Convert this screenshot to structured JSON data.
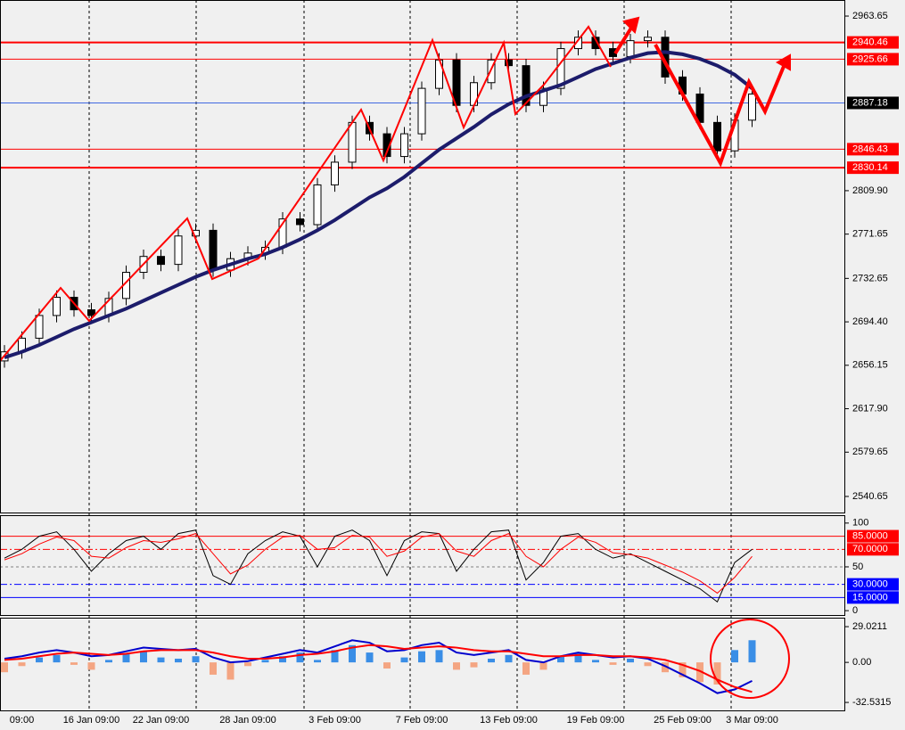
{
  "chart_data": [
    {
      "type": "candlestick",
      "categories": [
        null,
        "09:00",
        null,
        null,
        null,
        "16 Jan 09:00",
        null,
        null,
        null,
        "22 Jan 09:00",
        null,
        null,
        null,
        null,
        "28 Jan 09:00",
        null,
        null,
        null,
        null,
        "3 Feb 09:00",
        null,
        null,
        null,
        null,
        "7 Feb 09:00",
        null,
        null,
        null,
        null,
        "13 Feb 09:00",
        null,
        null,
        null,
        null,
        "19 Feb 09:00",
        null,
        null,
        null,
        null,
        "25 Feb 09:00",
        null,
        null,
        null,
        "3 Mar 09:00"
      ],
      "open": [
        2660,
        2668,
        2680,
        2700,
        2716,
        2705,
        2700,
        2715,
        2738,
        2752,
        2745,
        2770,
        2775,
        2740,
        2750,
        2755,
        2760,
        2785,
        2780,
        2815,
        2835,
        2870,
        2860,
        2840,
        2860,
        2900,
        2925,
        2885,
        2905,
        2925,
        2920,
        2885,
        2900,
        2935,
        2945,
        2935,
        2928,
        2942,
        2945,
        2910,
        2895,
        2870,
        2845,
        2872
      ],
      "high": [
        2674,
        2686,
        2706,
        2722,
        2722,
        2711,
        2721,
        2744,
        2758,
        2758,
        2776,
        2781,
        2781,
        2756,
        2761,
        2766,
        2791,
        2791,
        2821,
        2841,
        2876,
        2876,
        2866,
        2866,
        2906,
        2931,
        2931,
        2911,
        2931,
        2931,
        2926,
        2906,
        2941,
        2951,
        2951,
        2941,
        2948,
        2951,
        2951,
        2916,
        2901,
        2876,
        2878,
        2901
      ],
      "low": [
        2654,
        2662,
        2674,
        2694,
        2699,
        2694,
        2694,
        2709,
        2732,
        2739,
        2739,
        2764,
        2734,
        2734,
        2744,
        2749,
        2754,
        2774,
        2774,
        2809,
        2829,
        2854,
        2834,
        2834,
        2854,
        2894,
        2879,
        2879,
        2899,
        2914,
        2879,
        2879,
        2894,
        2929,
        2929,
        2922,
        2922,
        2936,
        2904,
        2889,
        2864,
        2839,
        2839,
        2866
      ],
      "close": [
        2668,
        2680,
        2700,
        2716,
        2705,
        2700,
        2715,
        2738,
        2752,
        2745,
        2770,
        2775,
        2740,
        2750,
        2755,
        2760,
        2785,
        2780,
        2815,
        2835,
        2870,
        2860,
        2840,
        2860,
        2900,
        2925,
        2885,
        2905,
        2925,
        2920,
        2885,
        2900,
        2935,
        2945,
        2935,
        2928,
        2942,
        2945,
        2910,
        2895,
        2870,
        2845,
        2872,
        2895
      ],
      "up_color": "#ffffff",
      "down_color": "#000000",
      "lines": [
        {
          "color": "#1c1c6b",
          "values": [
            2663,
            2668,
            2674,
            2681,
            2688,
            2694,
            2700,
            2706,
            2713,
            2720,
            2727,
            2734,
            2740,
            2745,
            2750,
            2754,
            2760,
            2767,
            2775,
            2784,
            2794,
            2804,
            2812,
            2822,
            2834,
            2846,
            2856,
            2866,
            2877,
            2886,
            2893,
            2898,
            2903,
            2910,
            2917,
            2922,
            2927,
            2931,
            2932,
            2930,
            2926,
            2920,
            2912,
            2900
          ]
        }
      ],
      "hlines": [
        {
          "value": 2940.46,
          "color": "#ff0000"
        },
        {
          "value": 2925.66,
          "color": "#ff0000"
        },
        {
          "value": 2887.18,
          "color": "#4169e1",
          "label_bg": "#000000"
        },
        {
          "value": 2846.43,
          "color": "#ff0000"
        },
        {
          "value": 2830.14,
          "color": "#ff0000"
        }
      ],
      "ylim": [
        2526.5,
        2977.8
      ],
      "yticks": [
        2963.65,
        {
          "value": 2809.9,
          "label": "2809.90"
        },
        2771.65,
        2732.65,
        {
          "value": 2694.4,
          "label": "2694.40"
        },
        2656.15,
        {
          "value": 2617.9,
          "label": "2617.90"
        },
        2579.65,
        2540.65
      ]
    },
    {
      "type": "line",
      "series": [
        {
          "color": "#000000",
          "values": [
            60,
            70,
            85,
            90,
            70,
            45,
            65,
            80,
            85,
            70,
            88,
            92,
            40,
            30,
            65,
            80,
            90,
            85,
            50,
            85,
            92,
            80,
            40,
            80,
            90,
            88,
            45,
            70,
            90,
            92,
            35,
            55,
            85,
            88,
            70,
            60,
            65,
            55,
            45,
            35,
            25,
            10,
            55,
            70
          ]
        },
        {
          "color": "#ff0000",
          "values": [
            58,
            65,
            76,
            84,
            80,
            62,
            60,
            72,
            80,
            78,
            82,
            88,
            65,
            42,
            52,
            70,
            84,
            86,
            70,
            72,
            86,
            84,
            62,
            68,
            84,
            88,
            68,
            62,
            80,
            88,
            62,
            50,
            70,
            84,
            78,
            66,
            64,
            60,
            52,
            44,
            34,
            20,
            38,
            62
          ]
        }
      ],
      "levels": [
        {
          "value": 85,
          "label": "85.0000",
          "color": "#ff0000"
        },
        {
          "value": 70,
          "label": "70.0000",
          "color": "#ff0000"
        },
        {
          "value": 50,
          "color": "#808080"
        },
        {
          "value": 30,
          "label": "30.0000",
          "color": "#0000ff"
        },
        {
          "value": 15,
          "label": "15.0000",
          "color": "#0000ff"
        }
      ],
      "ylim": [
        -5,
        109
      ],
      "yticks": [
        100,
        50,
        0
      ]
    },
    {
      "type": "bar",
      "values": [
        -8,
        -3,
        4,
        6,
        -2,
        -6,
        2,
        7,
        9,
        4,
        3,
        5,
        -10,
        -14,
        -3,
        2,
        5,
        8,
        2,
        10,
        14,
        8,
        -5,
        4,
        9,
        10,
        -6,
        -4,
        3,
        6,
        -10,
        -6,
        5,
        8,
        2,
        -2,
        3,
        -3,
        -8,
        -12,
        -16,
        -18,
        10,
        18
      ],
      "up_color": "#3a8ee6",
      "down_color": "#f4a582",
      "series": [
        {
          "color": "#0000cd",
          "values": [
            3,
            5,
            8,
            10,
            8,
            5,
            6,
            9,
            12,
            11,
            10,
            11,
            4,
            0,
            1,
            4,
            7,
            10,
            8,
            13,
            18,
            16,
            9,
            10,
            14,
            16,
            8,
            6,
            8,
            10,
            2,
            0,
            5,
            8,
            6,
            4,
            5,
            3,
            -3,
            -10,
            -17,
            -25,
            -22,
            -15
          ]
        },
        {
          "color": "#ff0000",
          "values": [
            2,
            3,
            5,
            7,
            8,
            7,
            6,
            7,
            9,
            10,
            10,
            10,
            8,
            5,
            3,
            3,
            4,
            6,
            7,
            9,
            12,
            14,
            13,
            11,
            12,
            13,
            12,
            10,
            9,
            9,
            7,
            5,
            5,
            6,
            6,
            5,
            5,
            4,
            2,
            -2,
            -7,
            -14,
            -20,
            -24
          ]
        }
      ],
      "ylim": [
        -39,
        36.3
      ],
      "yticks": [
        29.0211,
        {
          "value": 0,
          "label": "0.00"
        },
        -32.5315
      ]
    }
  ]
}
